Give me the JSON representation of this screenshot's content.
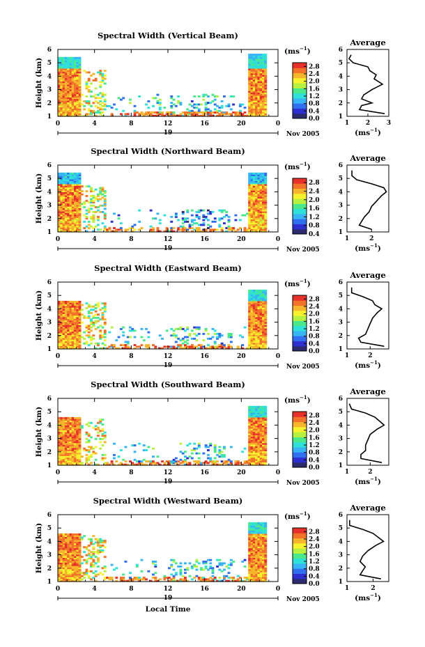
{
  "figure": {
    "date_label": "Nov 2005",
    "day_label": "19",
    "xlabel_bottom": "Local Time",
    "unit_label": "(ms",
    "unit_sup": "−1",
    "avg_title": "Average"
  },
  "colors": {
    "scale": [
      "#2b2b6e",
      "#2d2fd0",
      "#2f6ff0",
      "#37b4f5",
      "#2ee0d8",
      "#4ae88a",
      "#b8f040",
      "#f6f22e",
      "#f6b52a",
      "#f2722a",
      "#e8302a"
    ]
  },
  "chart_data": [
    {
      "type": "heatmap",
      "title": "Spectral Width (Vertical Beam)",
      "ylabel": "Height (km)",
      "x_ticks": [
        "0",
        "4",
        "8",
        "12",
        "16",
        "20",
        "0"
      ],
      "y_ticks": [
        "1",
        "2",
        "3",
        "4",
        "5",
        "6"
      ],
      "xlim": [
        0,
        24
      ],
      "ylim": [
        1,
        6
      ],
      "colorbar_ticks": [
        "2.8",
        "2.4",
        "2.0",
        "1.6",
        "1.2",
        "0.8",
        "0.4",
        "0.0"
      ],
      "colorbar_range": [
        0.0,
        3.0
      ],
      "average_profile": {
        "xlabel": "(ms",
        "x_ticks": [
          "1",
          "2",
          "3"
        ],
        "xlim": [
          1,
          3
        ],
        "heights": [
          1.2,
          1.5,
          1.8,
          2.0,
          2.3,
          2.6,
          3.0,
          3.4,
          3.8,
          4.1,
          4.4,
          4.7,
          5.0,
          5.3,
          5.6
        ],
        "values": [
          2.8,
          1.6,
          1.7,
          2.2,
          1.7,
          1.8,
          2.2,
          2.7,
          2.3,
          2.4,
          2.1,
          2.0,
          1.3,
          1.1,
          1.2
        ]
      }
    },
    {
      "type": "heatmap",
      "title": "Spectral Width (Northward Beam)",
      "ylabel": "Height (km)",
      "x_ticks": [
        "0",
        "4",
        "8",
        "12",
        "16",
        "20",
        "0"
      ],
      "y_ticks": [
        "1",
        "2",
        "3",
        "4",
        "5",
        "6"
      ],
      "xlim": [
        0,
        24
      ],
      "ylim": [
        1,
        6
      ],
      "colorbar_ticks": [
        "2.8",
        "2.4",
        "2.0",
        "1.6",
        "1.2",
        "0.8",
        "0.4"
      ],
      "colorbar_range": [
        0.4,
        3.0
      ],
      "average_profile": {
        "xlabel": "(ms",
        "x_ticks": [
          "1",
          "2"
        ],
        "xlim": [
          1,
          2.7
        ],
        "heights": [
          1.2,
          1.5,
          1.8,
          2.1,
          2.5,
          2.9,
          3.3,
          3.7,
          4.0,
          4.3,
          4.6,
          4.9,
          5.2,
          5.6
        ],
        "values": [
          2.0,
          1.5,
          1.6,
          1.7,
          1.9,
          2.0,
          2.2,
          2.4,
          2.6,
          2.5,
          2.0,
          1.4,
          1.2,
          1.2
        ]
      }
    },
    {
      "type": "heatmap",
      "title": "Spectral Width (Eastward Beam)",
      "ylabel": "Height (km)",
      "x_ticks": [
        "0",
        "4",
        "8",
        "12",
        "16",
        "20",
        "0"
      ],
      "y_ticks": [
        "1",
        "2",
        "3",
        "4",
        "5",
        "6"
      ],
      "xlim": [
        0,
        24
      ],
      "ylim": [
        1,
        6
      ],
      "colorbar_ticks": [
        "2.8",
        "2.4",
        "2.0",
        "1.6",
        "1.2",
        "0.8",
        "0.4",
        "0.0"
      ],
      "colorbar_range": [
        0.0,
        3.0
      ],
      "average_profile": {
        "xlabel": "(ms",
        "x_ticks": [
          "1",
          "2"
        ],
        "xlim": [
          1,
          2.8
        ],
        "heights": [
          1.2,
          1.5,
          1.8,
          2.1,
          2.5,
          2.9,
          3.3,
          3.7,
          4.0,
          4.3,
          4.6,
          4.9,
          5.2,
          5.6
        ],
        "values": [
          2.6,
          1.6,
          1.5,
          1.8,
          1.9,
          2.0,
          2.1,
          2.3,
          2.5,
          2.2,
          2.1,
          1.7,
          1.2,
          1.2
        ]
      }
    },
    {
      "type": "heatmap",
      "title": "Spectral Width (Southward Beam)",
      "ylabel": "Height (km)",
      "x_ticks": [
        "0",
        "4",
        "8",
        "12",
        "16",
        "20",
        "0"
      ],
      "y_ticks": [
        "1",
        "2",
        "3",
        "4",
        "5",
        "6"
      ],
      "xlim": [
        0,
        24
      ],
      "ylim": [
        1,
        6
      ],
      "colorbar_ticks": [
        "2.8",
        "2.4",
        "2.0",
        "1.6",
        "1.2",
        "0.8",
        "0.4",
        "0.0"
      ],
      "colorbar_range": [
        0.0,
        3.0
      ],
      "average_profile": {
        "xlabel": "(ms",
        "x_ticks": [
          "1",
          "2"
        ],
        "xlim": [
          1,
          2.8
        ],
        "heights": [
          1.2,
          1.5,
          1.8,
          2.1,
          2.5,
          2.9,
          3.3,
          3.7,
          4.0,
          4.3,
          4.6,
          4.9,
          5.2,
          5.6
        ],
        "values": [
          2.5,
          1.6,
          1.6,
          1.8,
          1.8,
          1.9,
          2.0,
          2.3,
          2.6,
          2.4,
          2.2,
          1.8,
          1.2,
          1.1
        ]
      }
    },
    {
      "type": "heatmap",
      "title": "Spectral Width (Westward Beam)",
      "ylabel": "Height (km)",
      "x_ticks": [
        "0",
        "4",
        "8",
        "12",
        "16",
        "20",
        "0"
      ],
      "y_ticks": [
        "1",
        "2",
        "3",
        "4",
        "5",
        "6"
      ],
      "xlim": [
        0,
        24
      ],
      "ylim": [
        1,
        6
      ],
      "colorbar_ticks": [
        "2.8",
        "2.4",
        "2.0",
        "1.6",
        "1.2",
        "0.8",
        "0.4",
        "0.0"
      ],
      "colorbar_range": [
        0.0,
        3.0
      ],
      "average_profile": {
        "xlabel": "(ms",
        "x_ticks": [
          "1",
          "2"
        ],
        "xlim": [
          1,
          2.6
        ],
        "heights": [
          1.2,
          1.5,
          1.8,
          2.1,
          2.5,
          2.9,
          3.3,
          3.7,
          4.0,
          4.3,
          4.6,
          4.9,
          5.2,
          5.6
        ],
        "values": [
          2.3,
          1.5,
          1.6,
          1.7,
          1.5,
          1.6,
          1.8,
          2.1,
          2.4,
          2.2,
          2.0,
          1.6,
          1.1,
          1.1
        ]
      }
    }
  ]
}
